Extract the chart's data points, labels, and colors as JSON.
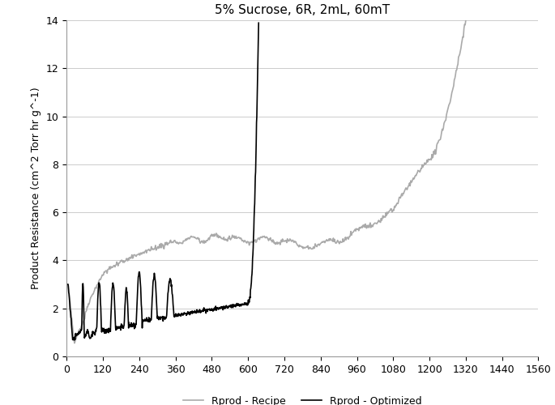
{
  "title": "5% Sucrose, 6R, 2mL, 60mT",
  "xlabel": "",
  "ylabel": "Product Resistance (cm^2 Torr hr g^-1)",
  "xlim": [
    0,
    1560
  ],
  "ylim": [
    0,
    14
  ],
  "xticks": [
    0,
    120,
    240,
    360,
    480,
    600,
    720,
    840,
    960,
    1080,
    1200,
    1320,
    1440,
    1560
  ],
  "yticks": [
    0,
    2,
    4,
    6,
    8,
    10,
    12,
    14
  ],
  "legend": [
    {
      "label": "Rprod - Recipe",
      "color": "#aaaaaa",
      "linestyle": "-"
    },
    {
      "label": "Rprod - Optimized",
      "color": "#000000",
      "linestyle": "-"
    }
  ],
  "background_color": "#ffffff",
  "grid_color": "#cccccc",
  "title_fontsize": 11,
  "axis_fontsize": 9,
  "tick_fontsize": 9,
  "legend_fontsize": 9
}
